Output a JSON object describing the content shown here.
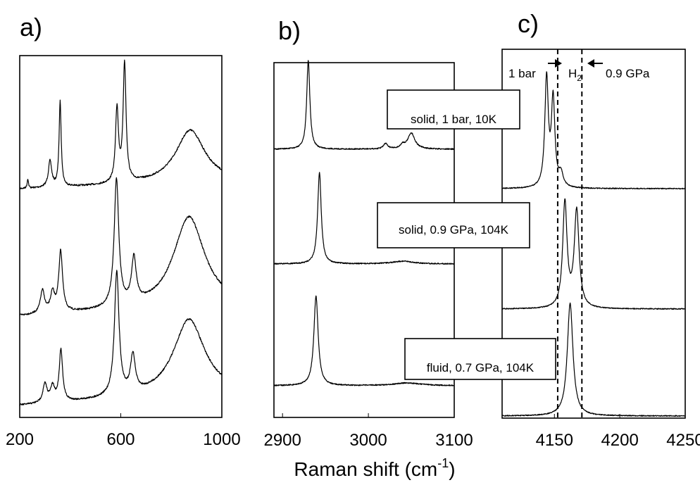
{
  "xlabel": "Raman shift (cm",
  "xlabel_sup": "-1",
  "xlabel_end": ")",
  "chart_data": [
    {
      "type": "line",
      "panel": "a)",
      "xlim": [
        200,
        1000
      ],
      "xticks": [
        200,
        600,
        1000
      ],
      "xtick_labels": [
        "200",
        "600",
        "1000"
      ],
      "series": [
        {
          "peaks": [
            [
              232,
              0.08,
              3
            ],
            [
              320,
              0.22,
              8
            ],
            [
              360,
              0.72,
              5
            ],
            [
              585,
              0.62,
              7
            ],
            [
              615,
              1.0,
              7
            ],
            [
              875,
              0.45,
              70
            ]
          ]
        },
        {
          "peaks": [
            [
              290,
              0.18,
              10
            ],
            [
              330,
              0.15,
              10
            ],
            [
              362,
              0.48,
              9
            ],
            [
              583,
              1.0,
              11
            ],
            [
              652,
              0.35,
              11
            ],
            [
              870,
              0.72,
              75
            ]
          ]
        },
        {
          "peaks": [
            [
              300,
              0.15,
              10
            ],
            [
              330,
              0.12,
              10
            ],
            [
              363,
              0.42,
              8
            ],
            [
              584,
              1.0,
              11
            ],
            [
              648,
              0.3,
              11
            ],
            [
              870,
              0.62,
              75
            ]
          ]
        }
      ]
    },
    {
      "type": "line",
      "panel": "b)",
      "xlim": [
        2890,
        3100
      ],
      "xticks": [
        2900,
        3000,
        3100
      ],
      "xtick_labels": [
        "2900",
        "3000",
        "3100"
      ],
      "series": [
        {
          "label": "solid, 1 bar, 10K",
          "peaks": [
            [
              2930,
              1.0,
              2.2
            ],
            [
              3020,
              0.06,
              3
            ],
            [
              3050,
              0.18,
              5
            ],
            [
              3040,
              0.04,
              3
            ]
          ]
        },
        {
          "label": "solid, 0.9 GPa, 104K",
          "peaks": [
            [
              2943,
              1.0,
              2.5
            ],
            [
              3040,
              0.03,
              15
            ]
          ]
        },
        {
          "label": "fluid, 0.7 GPa, 104K",
          "peaks": [
            [
              2939,
              1.0,
              3.0
            ],
            [
              3045,
              0.03,
              20
            ]
          ]
        }
      ]
    },
    {
      "type": "line",
      "panel": "c)",
      "xlim": [
        4110,
        4250
      ],
      "xticks": [
        4150,
        4200,
        4250
      ],
      "xtick_labels": [
        "4150",
        "4200",
        "4250"
      ],
      "reference_lines": [
        4152.5,
        4171
      ],
      "annotations": {
        "left": "1 bar",
        "middle": "H",
        "middle_sub": "2",
        "right": "0.9 GPa"
      },
      "series": [
        {
          "peaks": [
            [
              4144,
              1.0,
              1.6
            ],
            [
              4149,
              0.8,
              1.6
            ],
            [
              4155,
              0.12,
              2
            ]
          ]
        },
        {
          "peaks": [
            [
              4158,
              0.92,
              2.0
            ],
            [
              4167,
              0.85,
              2.2
            ]
          ]
        },
        {
          "peaks": [
            [
              4162,
              1.0,
              2.6
            ]
          ]
        }
      ]
    }
  ]
}
